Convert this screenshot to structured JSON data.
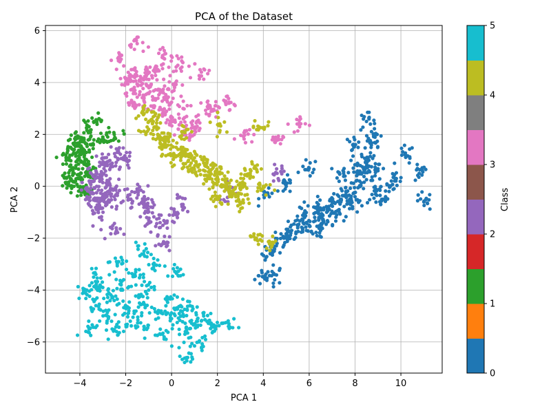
{
  "chart_data": {
    "type": "scatter",
    "title": "PCA of the Dataset",
    "xlabel": "PCA 1",
    "ylabel": "PCA 2",
    "xlim": [
      -5.5,
      11.8
    ],
    "ylim": [
      -7.2,
      6.2
    ],
    "xticks": [
      -4,
      -2,
      0,
      2,
      4,
      6,
      8,
      10
    ],
    "xtick_labels": [
      "−4",
      "−2",
      "0",
      "2",
      "4",
      "6",
      "8",
      "10"
    ],
    "yticks": [
      -6,
      -4,
      -2,
      0,
      2,
      4,
      6
    ],
    "ytick_labels": [
      "−6",
      "−4",
      "−2",
      "0",
      "2",
      "4",
      "6"
    ],
    "grid": true,
    "colorbar": {
      "label": "Class",
      "range": [
        0,
        5
      ],
      "ticks": [
        0,
        1,
        2,
        3,
        4,
        5
      ],
      "tick_labels": [
        "0",
        "1",
        "2",
        "3",
        "4",
        "5"
      ],
      "colors": [
        "#1f77b4",
        "#ff7f0e",
        "#2ca02c",
        "#d62728",
        "#9467bd",
        "#8c564b",
        "#e377c2",
        "#7f7f7f",
        "#bcbd22",
        "#17becf"
      ]
    },
    "series": [
      {
        "class": 0,
        "color": "#1f77b4",
        "points": [
          [
            4.0,
            -3.5
          ],
          [
            4.5,
            -3.4
          ],
          [
            4.3,
            -2.6
          ],
          [
            4.6,
            -2.2
          ],
          [
            4.9,
            -2.0
          ],
          [
            5.2,
            -1.8
          ],
          [
            5.5,
            -1.6
          ],
          [
            5.8,
            -1.2
          ],
          [
            6.0,
            -1.5
          ],
          [
            6.2,
            -0.8
          ],
          [
            6.4,
            -1.0
          ],
          [
            6.6,
            -1.4
          ],
          [
            6.8,
            -0.9
          ],
          [
            7.0,
            -0.6
          ],
          [
            7.2,
            -1.1
          ],
          [
            7.4,
            -0.5
          ],
          [
            7.6,
            -0.2
          ],
          [
            7.8,
            -0.7
          ],
          [
            8.0,
            -0.4
          ],
          [
            8.2,
            0.2
          ],
          [
            8.4,
            0.6
          ],
          [
            8.6,
            1.0
          ],
          [
            8.7,
            1.5
          ],
          [
            8.8,
            2.0
          ],
          [
            8.5,
            2.5
          ],
          [
            8.9,
            -0.3
          ],
          [
            9.2,
            -0.5
          ],
          [
            9.5,
            0.0
          ],
          [
            9.8,
            0.3
          ],
          [
            10.2,
            1.2
          ],
          [
            10.8,
            0.5
          ],
          [
            11.0,
            -0.6
          ],
          [
            6.0,
            0.7
          ],
          [
            5.0,
            0.0
          ],
          [
            4.2,
            -0.3
          ],
          [
            7.5,
            0.5
          ],
          [
            8.1,
            0.8
          ],
          [
            6.5,
            -1.7
          ],
          [
            9.0,
            0.6
          ],
          [
            7.9,
            1.6
          ]
        ]
      },
      {
        "class": 1,
        "color": "#2ca02c",
        "points": [
          [
            -4.6,
            1.1
          ],
          [
            -4.5,
            0.1
          ],
          [
            -4.4,
            1.5
          ],
          [
            -4.3,
            0.6
          ],
          [
            -4.2,
            1.8
          ],
          [
            -4.1,
            1.0
          ],
          [
            -4.0,
            0.3
          ],
          [
            -3.9,
            1.4
          ],
          [
            -3.8,
            -0.2
          ],
          [
            -3.7,
            0.8
          ],
          [
            -3.6,
            2.3
          ],
          [
            -3.5,
            1.6
          ],
          [
            -3.3,
            2.5
          ],
          [
            -3.0,
            1.9
          ],
          [
            -2.5,
            2.0
          ],
          [
            -3.8,
            1.2
          ],
          [
            -4.0,
            1.7
          ],
          [
            -3.6,
            0.5
          ],
          [
            -4.6,
            0.1
          ],
          [
            -3.9,
            -0.2
          ]
        ]
      },
      {
        "class": 2,
        "color": "#9467bd",
        "points": [
          [
            -3.6,
            -0.2
          ],
          [
            -3.5,
            0.2
          ],
          [
            -3.4,
            -0.5
          ],
          [
            -3.3,
            0.6
          ],
          [
            -3.2,
            -0.8
          ],
          [
            -3.1,
            0.3
          ],
          [
            -3.0,
            -0.3
          ],
          [
            -2.9,
            0.9
          ],
          [
            -2.8,
            -0.6
          ],
          [
            -2.7,
            0.1
          ],
          [
            -2.6,
            -0.1
          ],
          [
            -2.5,
            -0.4
          ],
          [
            -2.3,
            1.3
          ],
          [
            -2.0,
            1.0
          ],
          [
            -1.8,
            -0.5
          ],
          [
            -1.5,
            -0.2
          ],
          [
            -1.2,
            -0.6
          ],
          [
            -0.9,
            -0.8
          ],
          [
            -0.5,
            -1.4
          ],
          [
            -0.3,
            -2.2
          ],
          [
            0.2,
            -1.1
          ],
          [
            0.5,
            -0.7
          ],
          [
            -2.4,
            -1.7
          ],
          [
            -1.0,
            -1.4
          ],
          [
            2.5,
            -0.2
          ],
          [
            4.6,
            0.5
          ],
          [
            -3.2,
            -1.0
          ],
          [
            -2.8,
            0.8
          ]
        ]
      },
      {
        "class": 3,
        "color": "#e377c2",
        "points": [
          [
            -2.2,
            4.9
          ],
          [
            -2.0,
            4.0
          ],
          [
            -1.8,
            4.3
          ],
          [
            -1.6,
            3.7
          ],
          [
            -1.5,
            5.5
          ],
          [
            -1.4,
            4.1
          ],
          [
            -1.2,
            3.4
          ],
          [
            -1.0,
            4.4
          ],
          [
            -0.9,
            3.9
          ],
          [
            -0.8,
            3.1
          ],
          [
            -0.6,
            4.5
          ],
          [
            -0.5,
            3.6
          ],
          [
            -0.4,
            2.8
          ],
          [
            -0.3,
            5.1
          ],
          [
            -0.2,
            3.3
          ],
          [
            0.0,
            2.5
          ],
          [
            0.1,
            3.9
          ],
          [
            0.3,
            2.2
          ],
          [
            0.5,
            3.0
          ],
          [
            0.8,
            2.0
          ],
          [
            1.1,
            2.5
          ],
          [
            1.3,
            4.4
          ],
          [
            1.6,
            3.0
          ],
          [
            1.9,
            3.1
          ],
          [
            2.5,
            3.2
          ],
          [
            3.2,
            2.1
          ],
          [
            4.5,
            1.7
          ],
          [
            5.5,
            2.4
          ],
          [
            -1.7,
            3.2
          ],
          [
            0.2,
            4.6
          ]
        ]
      },
      {
        "class": 4,
        "color": "#bcbd22",
        "points": [
          [
            -1.2,
            2.8
          ],
          [
            -1.0,
            2.2
          ],
          [
            -0.8,
            2.5
          ],
          [
            -0.6,
            2.0
          ],
          [
            -0.4,
            1.6
          ],
          [
            -0.2,
            1.9
          ],
          [
            0.0,
            1.2
          ],
          [
            0.2,
            1.5
          ],
          [
            0.4,
            1.0
          ],
          [
            0.6,
            1.3
          ],
          [
            0.8,
            0.8
          ],
          [
            1.0,
            1.1
          ],
          [
            1.2,
            0.6
          ],
          [
            1.4,
            0.9
          ],
          [
            1.6,
            0.4
          ],
          [
            1.8,
            0.7
          ],
          [
            2.0,
            0.2
          ],
          [
            2.2,
            0.5
          ],
          [
            2.4,
            0.0
          ],
          [
            2.6,
            -0.2
          ],
          [
            2.8,
            -0.4
          ],
          [
            3.0,
            0.0
          ],
          [
            3.3,
            0.4
          ],
          [
            3.6,
            0.7
          ],
          [
            4.0,
            0.0
          ],
          [
            3.8,
            2.3
          ],
          [
            2.1,
            2.4
          ],
          [
            3.1,
            -0.6
          ],
          [
            1.9,
            -0.5
          ],
          [
            3.7,
            -2.0
          ],
          [
            4.3,
            -2.2
          ],
          [
            0.5,
            2.1
          ]
        ]
      },
      {
        "class": 5,
        "color": "#17becf",
        "points": [
          [
            -3.7,
            -4.0
          ],
          [
            -3.6,
            -5.5
          ],
          [
            -3.4,
            -3.5
          ],
          [
            -3.3,
            -4.6
          ],
          [
            -3.0,
            -3.9
          ],
          [
            -2.8,
            -5.0
          ],
          [
            -2.6,
            -4.3
          ],
          [
            -2.4,
            -5.6
          ],
          [
            -2.2,
            -3.8
          ],
          [
            -2.0,
            -4.7
          ],
          [
            -1.8,
            -5.2
          ],
          [
            -1.6,
            -3.4
          ],
          [
            -1.4,
            -4.5
          ],
          [
            -1.2,
            -5.4
          ],
          [
            -1.0,
            -4.0
          ],
          [
            -0.8,
            -3.0
          ],
          [
            -0.6,
            -4.9
          ],
          [
            -0.4,
            -5.7
          ],
          [
            -0.2,
            -4.4
          ],
          [
            0.0,
            -5.1
          ],
          [
            0.2,
            -3.3
          ],
          [
            0.4,
            -4.8
          ],
          [
            0.6,
            -5.6
          ],
          [
            0.8,
            -4.6
          ],
          [
            1.0,
            -5.3
          ],
          [
            1.2,
            -6.0
          ],
          [
            1.4,
            -5.0
          ],
          [
            1.8,
            -5.6
          ],
          [
            2.5,
            -5.3
          ],
          [
            0.7,
            -6.6
          ],
          [
            -2.4,
            -2.9
          ],
          [
            -1.2,
            -2.5
          ]
        ]
      }
    ]
  }
}
